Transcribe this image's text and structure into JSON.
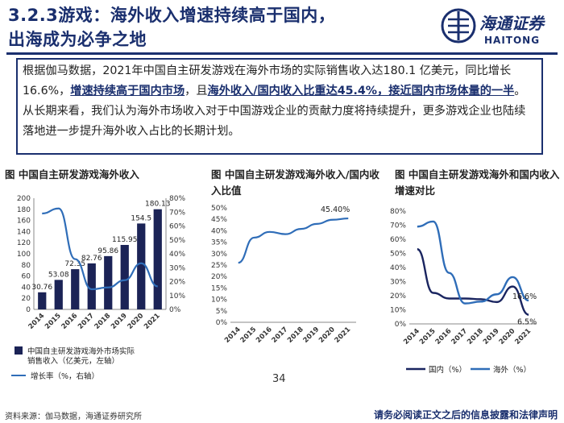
{
  "title": {
    "line1": "3.2.3游戏：海外收入增速持续高于国内，",
    "line2": "出海成为必争之地"
  },
  "logo": {
    "cn": "海通证券",
    "en": "HAITONG"
  },
  "summary": {
    "p1": "根据伽马数据，2021年中国自主研发游戏在海外市场的实际销售收入达180.1 亿美元，同比增长16.6%，",
    "b1": "增速持续高于国内市场",
    "p2": "，且",
    "b2": "海外收入/国内收入比重达45.4%，接近国内市场体量的一半",
    "p3": "。从长期来看，我们认为海外市场收入对于中国游戏企业的贡献力度将持续提升，更多游戏企业也陆续落地进一步提升海外收入占比的长期计划。"
  },
  "chart_titles": {
    "c1": "图 中国自主研发游戏海外收入",
    "c2": "图 中国自主研发游戏海外收入/国内收入比值",
    "c3": "图 中国自主研发游戏海外和国内收入增速对比"
  },
  "chart_data": [
    {
      "type": "bar",
      "title": "中国自主研发游戏海外收入",
      "categories": [
        "2014",
        "2015",
        "2016",
        "2017",
        "2018",
        "2019",
        "2020",
        "2021"
      ],
      "series": [
        {
          "name": "中国自主研发游戏海外市场实际销售收入（亿美元，左轴）",
          "type": "bar",
          "values": [
            30.76,
            53.08,
            72.35,
            82.76,
            95.86,
            115.95,
            154.5,
            180.13
          ],
          "labels": [
            "30.76",
            "53.08",
            "72.35",
            "82.76",
            "95.86",
            "115.95",
            "154.5",
            "180.13"
          ]
        },
        {
          "name": "增长率（%，右轴）",
          "type": "line",
          "values": [
            69,
            72.6,
            36.2,
            14.5,
            15.8,
            21.0,
            33.2,
            16.6
          ]
        }
      ],
      "y_left": {
        "min": 0,
        "max": 200,
        "ticks": [
          "0",
          "20",
          "40",
          "60",
          "80",
          "100",
          "120",
          "140",
          "160",
          "180",
          "200"
        ]
      },
      "y_right": {
        "min": 0,
        "max": 80,
        "ticks": [
          "0%",
          "10%",
          "20%",
          "30%",
          "40%",
          "50%",
          "60%",
          "70%",
          "80%"
        ]
      },
      "legend": {
        "bar": "中国自主研发游戏海外市场实际销售收入（亿美元，左轴）",
        "line": "增长率（%，右轴）"
      }
    },
    {
      "type": "line",
      "title": "中国自主研发游戏海外收入/国内收入比值",
      "categories": [
        "2014",
        "2015",
        "2016",
        "2017",
        "2018",
        "2019",
        "2020",
        "2021"
      ],
      "series": [
        {
          "name": "海外/国内",
          "values": [
            26,
            37,
            39.5,
            38.5,
            40.8,
            43,
            44.8,
            45.4
          ]
        }
      ],
      "annotation": "45.40%",
      "y": {
        "min": 0,
        "max": 50,
        "ticks": [
          "0%",
          "5%",
          "10%",
          "15%",
          "20%",
          "25%",
          "30%",
          "35%",
          "40%",
          "45%",
          "50%"
        ]
      }
    },
    {
      "type": "line",
      "title": "中国自主研发游戏海外和国内收入增速对比",
      "categories": [
        "2014",
        "2015",
        "2016",
        "2017",
        "2018",
        "2019",
        "2020",
        "2021"
      ],
      "series": [
        {
          "name": "国内（%）",
          "values": [
            53,
            22,
            18,
            18,
            17.5,
            15.5,
            26.5,
            6.5
          ],
          "label_last": "6.5%",
          "color": "#1a2560"
        },
        {
          "name": "海外（%）",
          "values": [
            69,
            72.6,
            36.2,
            14.5,
            15.8,
            21.0,
            33.2,
            16.6
          ],
          "label_last": "16.6%",
          "color": "#2f6db8"
        }
      ],
      "y": {
        "min": 0,
        "max": 80,
        "ticks": [
          "0%",
          "10%",
          "20%",
          "30%",
          "40%",
          "50%",
          "60%",
          "70%",
          "80%"
        ]
      },
      "legend": {
        "domestic": "国内（%）",
        "overseas": "海外（%）"
      }
    }
  ],
  "footer": {
    "source": "资料来源：伽马数据，海通证券研究所",
    "page": "34",
    "disclaimer": "请务必阅读正文之后的信息披露和法律声明"
  },
  "colors": {
    "navy": "#1a2f6e",
    "bar": "#1b2356",
    "line": "#2f6db8"
  }
}
